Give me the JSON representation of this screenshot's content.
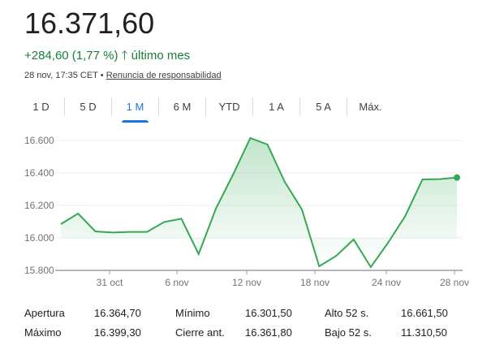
{
  "header": {
    "price": "16.371,60",
    "change": "+284,60 (1,77 %)",
    "period": "último mes",
    "timestamp": "28 nov, 17:35 CET •",
    "disclaimer": "Renuncia de responsabilidad"
  },
  "tabs": [
    "1 D",
    "5 D",
    "1 M",
    "6 M",
    "YTD",
    "1 A",
    "5 A",
    "Máx."
  ],
  "active_tab": "1 M",
  "colors": {
    "line": "#34a853",
    "positive": "#188038",
    "accent": "#1a73e8"
  },
  "chart_data": {
    "type": "area",
    "values": [
      16085,
      16150,
      16040,
      16033,
      16037,
      16037,
      16098,
      16118,
      15900,
      16180,
      16390,
      16615,
      16575,
      16345,
      16175,
      15825,
      15890,
      15990,
      15820,
      15970,
      16135,
      16360,
      16362,
      16371.6
    ],
    "x_ticks": [
      "31 oct",
      "6 nov",
      "12 nov",
      "18 nov",
      "24 nov",
      "28 nov"
    ],
    "y_ticks": [
      {
        "v": 15800,
        "label": "15.800"
      },
      {
        "v": 16000,
        "label": "16.000"
      },
      {
        "v": 16200,
        "label": "16.200"
      },
      {
        "v": 16400,
        "label": "16.400"
      },
      {
        "v": 16600,
        "label": "16.600"
      }
    ],
    "ylim": [
      15800,
      16600
    ],
    "grid": true
  },
  "stats": [
    {
      "label": "Apertura",
      "value": "16.364,70"
    },
    {
      "label": "Mínimo",
      "value": "16.301,50"
    },
    {
      "label": "Alto 52 s.",
      "value": "16.661,50"
    },
    {
      "label": "Máximo",
      "value": "16.399,30"
    },
    {
      "label": "Cierre ant.",
      "value": "16.361,80"
    },
    {
      "label": "Bajo 52 s.",
      "value": "11.310,50"
    }
  ]
}
